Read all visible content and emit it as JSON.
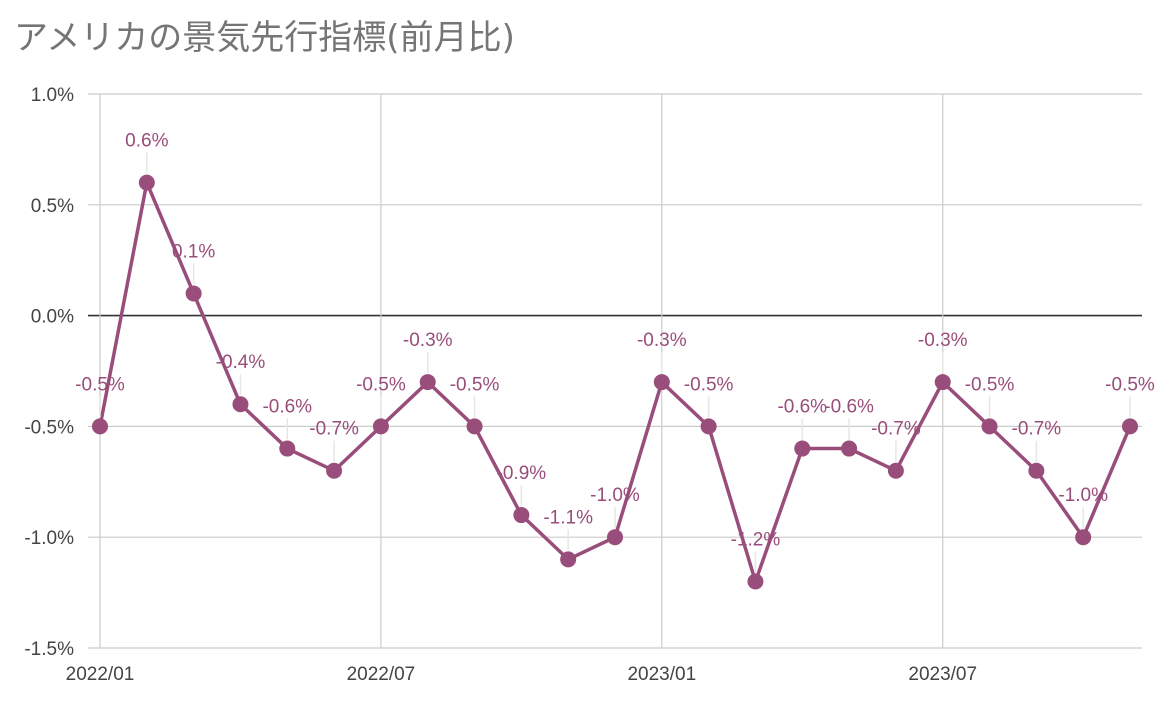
{
  "title": "アメリカの景気先行指標(前月比)",
  "colors": {
    "series": "#994d7a",
    "grid": "#cccccc",
    "zero": "#333333",
    "axis_text": "#444444",
    "title": "#757575"
  },
  "chart_data": {
    "type": "line",
    "title": "アメリカの景気先行指標(前月比)",
    "xlabel": "",
    "ylabel": "",
    "ylim": [
      -1.5,
      1.0
    ],
    "y_ticks": [
      "1.0%",
      "0.5%",
      "0.0%",
      "-0.5%",
      "-1.0%",
      "-1.5%"
    ],
    "x_ticks": [
      "2022/01",
      "2022/07",
      "2023/01",
      "2023/07"
    ],
    "grid": true,
    "legend": "none",
    "x": [
      "2022/01",
      "2022/02",
      "2022/03",
      "2022/04",
      "2022/05",
      "2022/06",
      "2022/07",
      "2022/08",
      "2022/09",
      "2022/10",
      "2022/11",
      "2022/12",
      "2023/01",
      "2023/02",
      "2023/03",
      "2023/04",
      "2023/05",
      "2023/06",
      "2023/07",
      "2023/08",
      "2023/09",
      "2023/10",
      "2023/11"
    ],
    "values": [
      -0.5,
      0.6,
      0.1,
      -0.4,
      -0.6,
      -0.7,
      -0.5,
      -0.3,
      -0.5,
      -0.9,
      -1.1,
      -1.0,
      -0.3,
      -0.5,
      -1.2,
      -0.6,
      -0.6,
      -0.7,
      -0.3,
      -0.5,
      -0.7,
      -1.0,
      -0.5
    ],
    "labels": [
      "-0.5%",
      "0.6%",
      "0.1%",
      "-0.4%",
      "-0.6%",
      "-0.7%",
      "-0.5%",
      "-0.3%",
      "-0.5%",
      "-0.9%",
      "-1.1%",
      "-1.0%",
      "-0.3%",
      "-0.5%",
      "-1.2%",
      "-0.6%",
      "-0.6%",
      "-0.7%",
      "-0.3%",
      "-0.5%",
      "-0.7%",
      "-1.0%",
      "-0.5%"
    ]
  }
}
